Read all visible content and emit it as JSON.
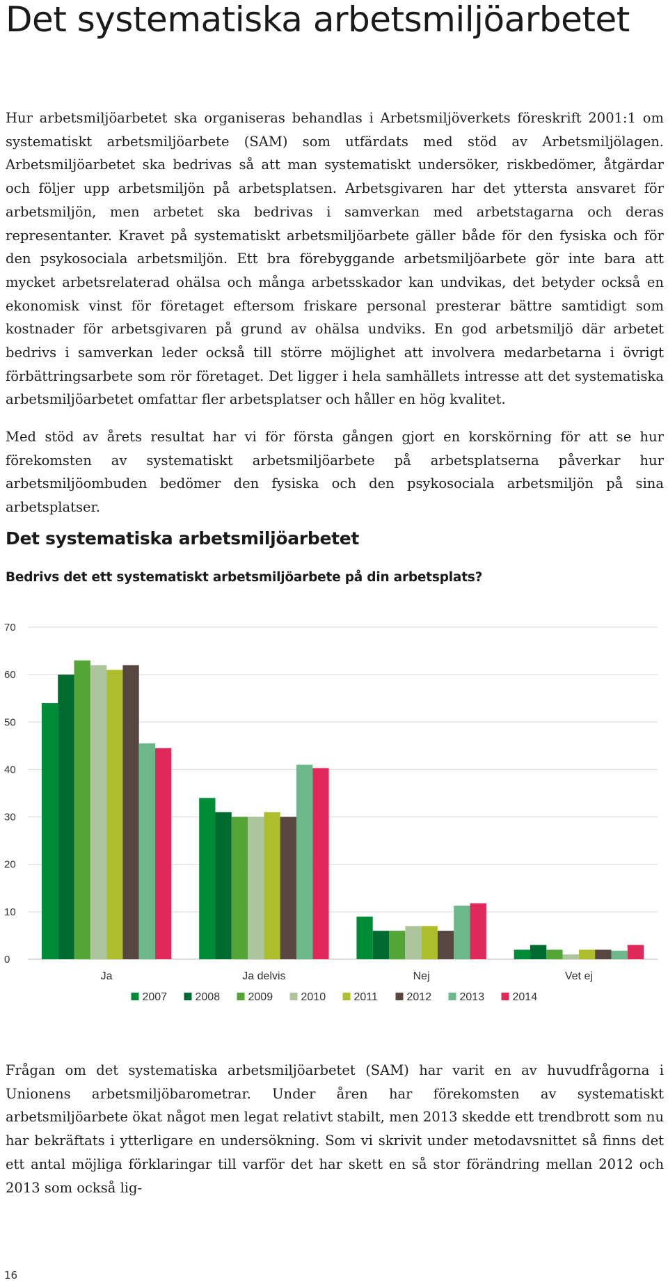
{
  "page": {
    "title": "Det systematiska arbetsmiljöarbetet",
    "paragraph1": "Hur arbetsmiljöarbetet ska organiseras behandlas i Arbetsmiljöverkets föreskrift 2001:1 om systematiskt arbetsmiljöarbete (SAM) som utfärdats med stöd av Arbetsmiljölagen. Arbetsmiljöarbetet ska bedrivas så att man systematiskt undersöker, riskbedömer, åtgärdar och följer upp arbetsmiljön på arbetsplatsen. Arbetsgivaren har det yttersta ansvaret för arbetsmiljön, men arbetet ska bedrivas i samverkan med arbetstagarna och deras representanter. Kravet på systematiskt arbetsmiljöarbete gäller både för den fysiska och för den psykosociala arbetsmiljön. Ett bra förebyggande arbetsmiljöarbete gör inte bara att mycket arbetsrelaterad ohälsa och många arbetsskador kan undvikas, det betyder också en ekonomisk vinst för företaget eftersom friskare personal presterar bättre samtidigt som kostnader för arbetsgivaren på grund av ohälsa undviks. En god arbetsmiljö där arbetet bedrivs i samverkan leder också till större möjlighet att involvera medarbetarna i övrigt förbättringsarbete som rör företaget. Det ligger i hela samhällets intresse att det systematiska arbetsmiljöarbetet omfattar fler arbetsplatser och håller en hög kvalitet.",
    "paragraph2": "Med stöd av årets resultat har vi för första gången gjort en korskörning för att se hur förekomsten av systematiskt arbetsmiljöarbete på arbetsplatserna påverkar hur arbetsmiljöombuden bedömer den fysiska och den psykosociala arbetsmiljön på sina arbetsplatser.",
    "chart_heading": "Det systematiska arbetsmiljöarbetet",
    "chart_question": "Bedrivs det ett systematiskt arbetsmiljöarbete på din arbetsplats?",
    "paragraph3": "Frågan om det systematiska arbetsmiljöarbetet (SAM) har varit en av huvudfrågorna i Unionens arbetsmiljöbarometrar. Under åren har förekomsten av systematiskt arbetsmiljöarbete ökat något men legat relativt stabilt, men 2013 skedde ett trendbrott som nu har bekräftats i ytterligare en undersökning. Som vi skrivit under metodavsnittet så finns det ett antal möjliga förklaringar till varför det har skett en så stor förändring mellan 2012 och 2013 som också lig-",
    "page_number": "16"
  },
  "chart_data": {
    "type": "bar",
    "title": "Bedrivs det ett systematiskt arbetsmiljöarbete på din arbetsplats?",
    "categories": [
      "Ja",
      "Ja delvis",
      "Nej",
      "Vet ej"
    ],
    "ylim": [
      0,
      70
    ],
    "yticks": [
      0,
      10,
      20,
      30,
      40,
      50,
      60,
      70
    ],
    "grid": true,
    "legend_position": "bottom",
    "series": [
      {
        "name": "2007",
        "color": "#008C36",
        "values": [
          54,
          34,
          9,
          2
        ]
      },
      {
        "name": "2008",
        "color": "#006B2E",
        "values": [
          60,
          31,
          6,
          3
        ]
      },
      {
        "name": "2009",
        "color": "#53A535",
        "values": [
          63,
          30,
          6,
          2
        ]
      },
      {
        "name": "2010",
        "color": "#ADC59D",
        "values": [
          62,
          30,
          7,
          1
        ]
      },
      {
        "name": "2011",
        "color": "#AEBD2B",
        "values": [
          61,
          31,
          7,
          2
        ]
      },
      {
        "name": "2012",
        "color": "#574740",
        "values": [
          62,
          30,
          6,
          2
        ]
      },
      {
        "name": "2013",
        "color": "#6CB88B",
        "values": [
          45.5,
          41,
          11.3,
          1.8
        ]
      },
      {
        "name": "2014",
        "color": "#E0295A",
        "values": [
          44.5,
          40.3,
          11.8,
          3
        ]
      }
    ]
  }
}
